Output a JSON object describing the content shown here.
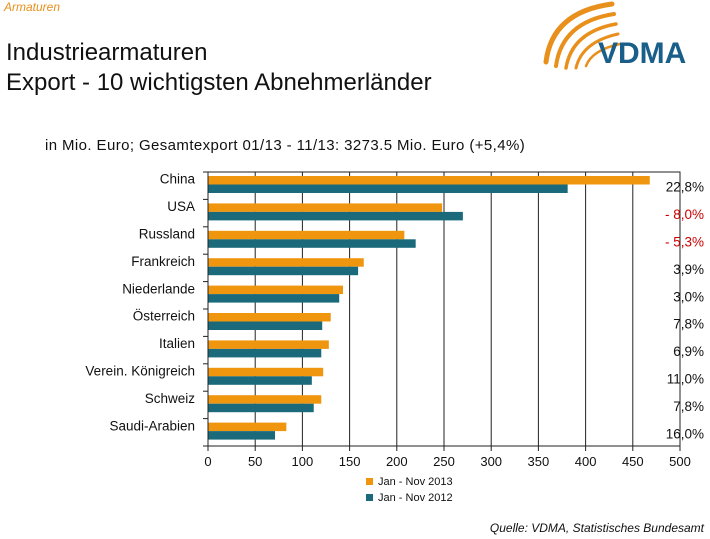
{
  "header": {
    "section": "Armaturen",
    "title_line1": "Industriearmaturen",
    "title_line2": "Export - 10 wichtigsten Abnehmerländer"
  },
  "logo": {
    "text": "VDMA",
    "text_color": "#1a5e8a",
    "arc_color": "#e8901b"
  },
  "subtitle": "in Mio. Euro; Gesamtexport 01/13 - 11/13: 3273.5 Mio. Euro (+5,4%)",
  "source": "Quelle: VDMA, Statistisches Bundesamt",
  "colors": {
    "series2013": "#f0960e",
    "series2012": "#1b6a7c",
    "negative": "#cc0000",
    "positive": "#111111"
  },
  "chart_data": {
    "type": "bar",
    "orientation": "horizontal",
    "categories": [
      "China",
      "USA",
      "Russland",
      "Frankreich",
      "Niederlande",
      "Österreich",
      "Italien",
      "Verein. Königreich",
      "Schweiz",
      "Saudi-Arabien"
    ],
    "series": [
      {
        "name": "Jan - Nov 2013",
        "values": [
          468,
          248,
          208,
          165,
          143,
          130,
          128,
          122,
          120,
          83
        ]
      },
      {
        "name": "Jan - Nov 2012",
        "values": [
          381,
          270,
          220,
          159,
          139,
          121,
          120,
          110,
          112,
          71
        ]
      }
    ],
    "change_labels": [
      "22,8%",
      "- 8,0%",
      "- 5,3%",
      "3,9%",
      "3,0%",
      "7,8%",
      "6,9%",
      "11,0%",
      "7,8%",
      "16,0%"
    ],
    "change_negative": [
      false,
      true,
      true,
      false,
      false,
      false,
      false,
      false,
      false,
      false
    ],
    "xlim": [
      0,
      500
    ],
    "xticks": [
      0,
      50,
      100,
      150,
      200,
      250,
      300,
      350,
      400,
      450,
      500
    ],
    "grid": true,
    "legend_position": "bottom"
  }
}
